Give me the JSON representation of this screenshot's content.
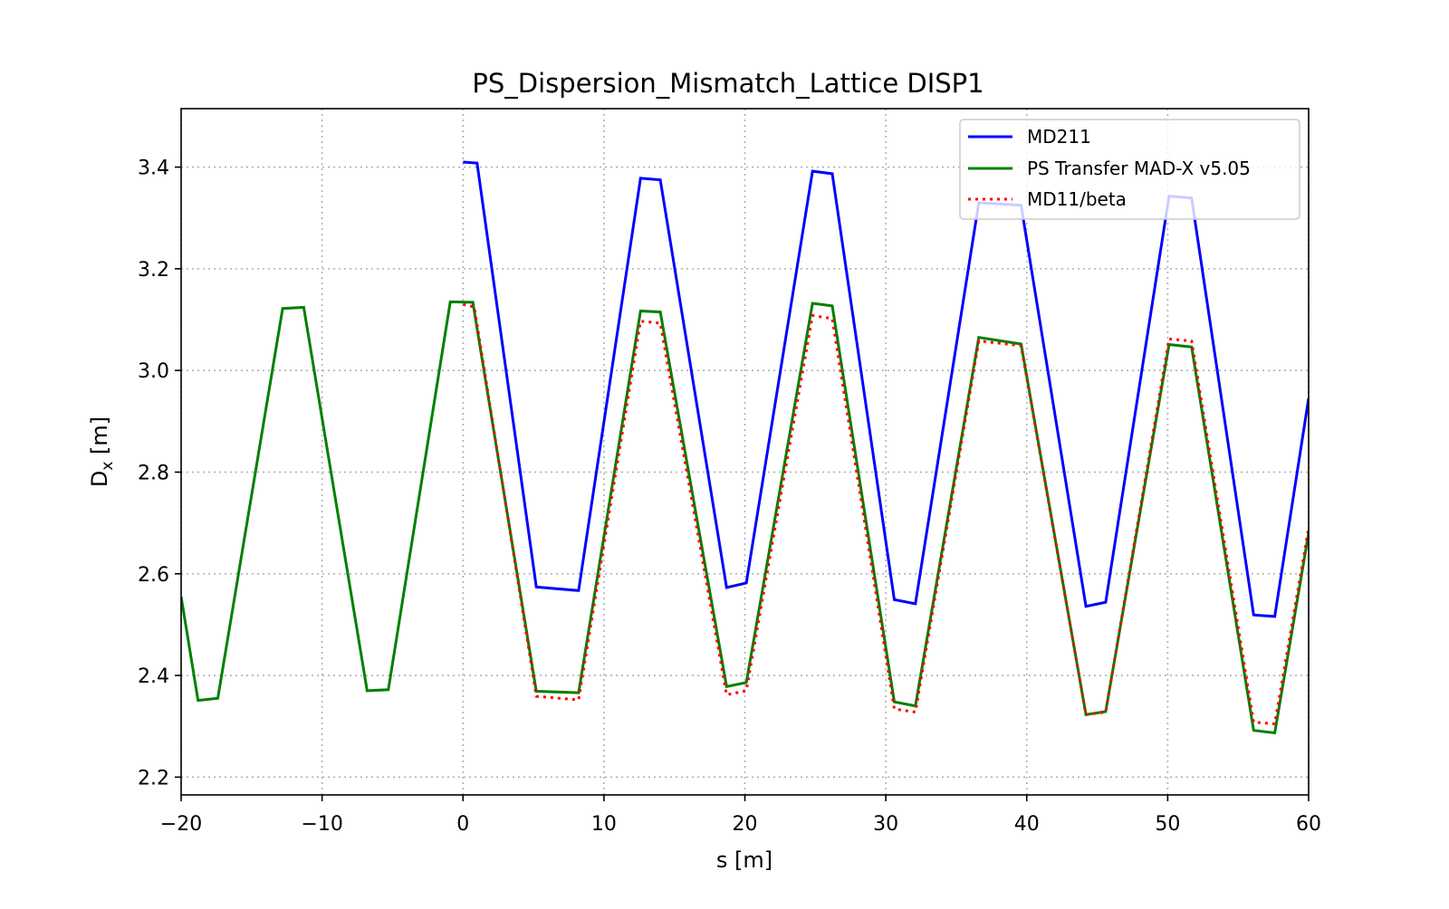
{
  "chart_data": {
    "type": "line",
    "title": "PS_Dispersion_Mismatch_Lattice DISP1",
    "xlabel": "s [m]",
    "ylabel": {
      "main": "D",
      "sub": "x",
      "unit": " [m]"
    },
    "xlim": [
      -20,
      60
    ],
    "ylim": [
      2.165,
      3.515
    ],
    "xticks": [
      -20,
      -10,
      0,
      10,
      20,
      30,
      40,
      50,
      60
    ],
    "xtick_labels": [
      "−20",
      "−10",
      "0",
      "10",
      "20",
      "30",
      "40",
      "50",
      "60"
    ],
    "yticks": [
      2.2,
      2.4,
      2.6,
      2.8,
      3.0,
      3.2,
      3.4
    ],
    "ytick_labels": [
      "2.2",
      "2.4",
      "2.6",
      "2.8",
      "3.0",
      "3.2",
      "3.4"
    ],
    "grid": true,
    "legend_position": "top-right",
    "series": [
      {
        "name": "MD211",
        "color": "#0000ff",
        "style": "solid",
        "x": [
          0,
          1,
          5.2,
          8.2,
          12.6,
          14,
          18.7,
          20.1,
          24.8,
          26.2,
          30.6,
          32.1,
          36.6,
          39.6,
          44.2,
          45.6,
          50.1,
          51.7,
          56.1,
          57.6,
          60
        ],
        "y": [
          3.41,
          3.408,
          2.574,
          2.567,
          3.378,
          3.375,
          2.573,
          2.582,
          3.392,
          3.387,
          2.549,
          2.541,
          3.33,
          3.325,
          2.536,
          2.544,
          3.343,
          3.339,
          2.519,
          2.516,
          2.945
        ]
      },
      {
        "name": "PS Transfer MAD-X v5.05",
        "color": "#008000",
        "style": "solid",
        "x": [
          -20,
          -18.8,
          -17.4,
          -12.8,
          -11.3,
          -6.8,
          -5.3,
          -0.9,
          0.7,
          5.2,
          8.2,
          12.6,
          14,
          18.7,
          20.1,
          24.8,
          26.2,
          30.6,
          32.1,
          36.6,
          39.6,
          44.2,
          45.6,
          50.1,
          51.7,
          56.1,
          57.6,
          60
        ],
        "y": [
          2.555,
          2.351,
          2.355,
          3.122,
          3.124,
          2.37,
          2.372,
          3.135,
          3.134,
          2.369,
          2.366,
          3.117,
          3.115,
          2.378,
          2.386,
          3.132,
          3.127,
          2.348,
          2.34,
          3.065,
          3.052,
          2.323,
          2.329,
          3.051,
          3.046,
          2.292,
          2.287,
          2.68
        ]
      },
      {
        "name": "MD11/beta",
        "color": "#ff0000",
        "style": "dotted",
        "x": [
          0,
          0.8,
          5.2,
          8.2,
          12.6,
          14,
          18.7,
          20.1,
          24.8,
          26.2,
          30.6,
          32.1,
          36.6,
          39.6,
          44.2,
          45.6,
          50.1,
          51.7,
          56.1,
          57.6,
          60
        ],
        "y": [
          3.13,
          3.125,
          2.359,
          2.352,
          3.097,
          3.093,
          2.362,
          2.37,
          3.108,
          3.102,
          2.334,
          2.328,
          3.058,
          3.049,
          2.323,
          2.328,
          3.062,
          3.058,
          2.308,
          2.305,
          2.69
        ]
      }
    ]
  }
}
